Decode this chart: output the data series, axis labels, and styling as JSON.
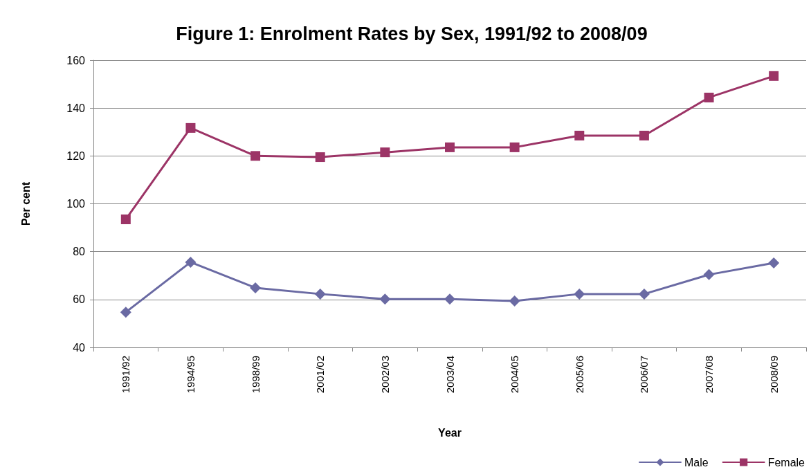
{
  "chart_data": {
    "type": "line",
    "title": "Figure 1: Enrolment Rates by Sex, 1991/92 to 2008/09",
    "xlabel": "Year",
    "ylabel": "Per cent",
    "categories": [
      "1991/92",
      "1994/95",
      "1998/99",
      "2001/02",
      "2002/03",
      "2003/04",
      "2004/05",
      "2005/06",
      "2006/07",
      "2007/08",
      "2008/09"
    ],
    "series": [
      {
        "name": "Male",
        "color": "#6a6aa3",
        "marker": "diamond",
        "values": [
          54.7,
          75.6,
          64.9,
          62.3,
          60.2,
          60.2,
          59.4,
          62.3,
          62.3,
          70.4,
          75.3
        ]
      },
      {
        "name": "Female",
        "color": "#9c3466",
        "marker": "square",
        "values": [
          93.5,
          131.7,
          120,
          119.5,
          121.5,
          123.6,
          123.6,
          128.5,
          128.5,
          144.4,
          153.4
        ]
      }
    ],
    "ylim": [
      40,
      160
    ],
    "yticks": [
      40,
      60,
      80,
      100,
      120,
      140,
      160
    ],
    "grid": "y",
    "legend": "bottom right",
    "line_style": "solid"
  }
}
